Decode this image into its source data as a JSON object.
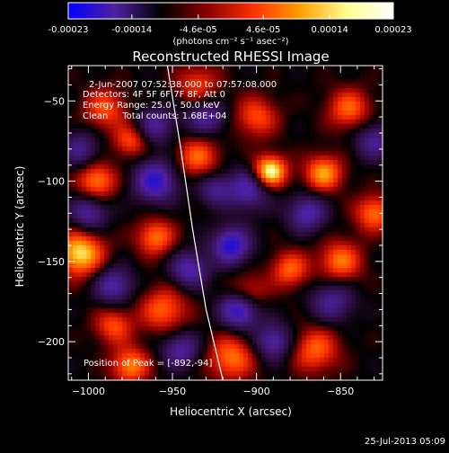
{
  "colorbar": {
    "tick_labels": [
      "-0.00023",
      "-0.00014",
      "-4.6e-05",
      "4.6e-05",
      "0.00014",
      "0.00023"
    ],
    "unit_label": "(photons cm⁻² s⁻¹ asec⁻²)",
    "range": [
      -0.00023,
      0.00023
    ],
    "gradient": [
      "#0000ff",
      "#5020a0",
      "#000000",
      "#8a0000",
      "#ff3000",
      "#ffa000",
      "#ffff90",
      "#ffffff"
    ]
  },
  "info": {
    "time_range": "2-Jun-2007 07:52:38.000 to 07:57:08.000",
    "detectors": "Detectors: 4F 5F 6F 7F 8F, Att 0",
    "energy": "Energy Range: 25.0 - 50.0 keV",
    "clean": "Clean     Total counts: 1.68E+04",
    "peak": "Position of Peak = [-892,-94]",
    "footer_time": "25-Jul-2013 05:09"
  },
  "chart_data": {
    "type": "heatmap",
    "title": "Reconstructed RHESSI Image",
    "xlabel": "Heliocentric X (arcsec)",
    "ylabel": "Heliocentric Y (arcsec)",
    "xlim": [
      -1012,
      -825
    ],
    "ylim": [
      -224,
      -28
    ],
    "x_ticks": [
      -1000,
      -950,
      -900,
      -850
    ],
    "y_ticks": [
      -200,
      -150,
      -100,
      -50
    ],
    "x_tick_labels": [
      "−1000",
      "−950",
      "−900",
      "−850"
    ],
    "y_tick_labels": [
      "−200",
      "−150",
      "−100",
      "−50"
    ],
    "limb_curve": [
      [
        -953,
        -28
      ],
      [
        -945,
        -80
      ],
      [
        -938,
        -130
      ],
      [
        -930,
        -180
      ],
      [
        -920,
        -224
      ]
    ],
    "peak_position": [
      -892,
      -94
    ],
    "blobs": [
      [
        -892,
        -94,
        1.0,
        7
      ],
      [
        -1005,
        -145,
        0.85,
        10
      ],
      [
        -995,
        -100,
        0.65,
        8
      ],
      [
        -960,
        -135,
        0.6,
        8
      ],
      [
        -955,
        -180,
        0.55,
        10
      ],
      [
        -975,
        -215,
        0.65,
        8
      ],
      [
        -915,
        -210,
        0.6,
        10
      ],
      [
        -865,
        -205,
        0.55,
        10
      ],
      [
        -850,
        -150,
        0.6,
        9
      ],
      [
        -880,
        -155,
        0.55,
        8
      ],
      [
        -935,
        -85,
        0.55,
        9
      ],
      [
        -860,
        -95,
        0.7,
        8
      ],
      [
        -830,
        -120,
        0.6,
        8
      ],
      [
        -900,
        -60,
        0.5,
        9
      ],
      [
        -845,
        -55,
        0.55,
        9
      ],
      [
        -990,
        -55,
        0.5,
        9
      ],
      [
        -935,
        -40,
        0.45,
        9
      ],
      [
        -985,
        -190,
        0.5,
        8
      ],
      [
        -905,
        -170,
        0.45,
        8
      ],
      [
        -975,
        -75,
        0.5,
        7
      ],
      [
        -960,
        -100,
        -0.75,
        9
      ],
      [
        -905,
        -105,
        -0.6,
        9
      ],
      [
        -915,
        -140,
        -0.8,
        8
      ],
      [
        -910,
        -180,
        -0.85,
        8
      ],
      [
        -890,
        -200,
        -0.6,
        8
      ],
      [
        -940,
        -155,
        -0.6,
        8
      ],
      [
        -1000,
        -120,
        -0.55,
        8
      ],
      [
        -985,
        -165,
        -0.6,
        8
      ],
      [
        -870,
        -120,
        -0.6,
        8
      ],
      [
        -855,
        -175,
        -0.5,
        9
      ],
      [
        -930,
        -60,
        -0.55,
        8
      ],
      [
        -960,
        -65,
        -0.5,
        8
      ],
      [
        -830,
        -75,
        -0.5,
        8
      ],
      [
        -945,
        -205,
        -0.55,
        8
      ],
      [
        -1005,
        -80,
        -0.45,
        8
      ],
      [
        -925,
        -105,
        -0.45,
        7
      ]
    ]
  }
}
